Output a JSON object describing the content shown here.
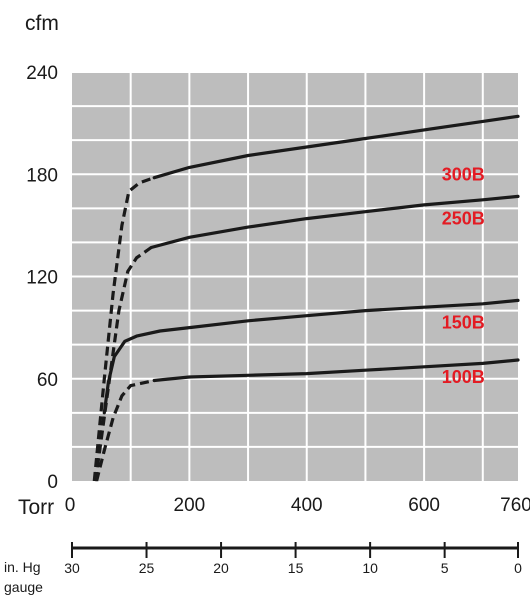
{
  "chart_data": {
    "type": "line",
    "y_unit_label": "cfm",
    "x_unit_label": "Torr",
    "secondary_axis": {
      "label_line1": "in. Hg",
      "label_line2": "gauge",
      "ticks": [
        {
          "label": "30",
          "torr": 0
        },
        {
          "label": "25",
          "torr": 127
        },
        {
          "label": "20",
          "torr": 254
        },
        {
          "label": "15",
          "torr": 381
        },
        {
          "label": "10",
          "torr": 508
        },
        {
          "label": "5",
          "torr": 635
        },
        {
          "label": "0",
          "torr": 760
        }
      ]
    },
    "xlim": [
      0,
      760
    ],
    "ylim": [
      0,
      240
    ],
    "x_ticks": [
      {
        "value": 0,
        "label": "0"
      },
      {
        "value": 200,
        "label": "200"
      },
      {
        "value": 400,
        "label": "400"
      },
      {
        "value": 600,
        "label": "600"
      },
      {
        "value": 760,
        "label": "760"
      }
    ],
    "y_ticks": [
      {
        "value": 0,
        "label": "0"
      },
      {
        "value": 60,
        "label": "60"
      },
      {
        "value": 120,
        "label": "120"
      },
      {
        "value": 180,
        "label": "180"
      },
      {
        "value": 240,
        "label": "240"
      }
    ],
    "grid_x": [
      0,
      100,
      200,
      300,
      400,
      500,
      600,
      700
    ],
    "grid_y": [
      0,
      20,
      40,
      60,
      80,
      100,
      120,
      140,
      160,
      180,
      200,
      220,
      240
    ],
    "grid": true,
    "colors": {
      "plot_background": "#bdbdbd",
      "grid": "#ffffff",
      "line": "#1a1a1a",
      "series_label": "#e31b23"
    },
    "series": [
      {
        "name": "300B",
        "label_at": {
          "x": 630,
          "y": 180
        },
        "dashed": [
          [
            38,
            0
          ],
          [
            55,
            60
          ],
          [
            70,
            110
          ],
          [
            85,
            150
          ],
          [
            97,
            170
          ],
          [
            115,
            175
          ],
          [
            140,
            178
          ]
        ],
        "solid": [
          [
            140,
            178
          ],
          [
            200,
            184
          ],
          [
            300,
            191
          ],
          [
            400,
            196
          ],
          [
            500,
            201
          ],
          [
            600,
            206
          ],
          [
            700,
            211
          ],
          [
            760,
            214
          ]
        ]
      },
      {
        "name": "250B",
        "label_at": {
          "x": 630,
          "y": 154
        },
        "dashed": [
          [
            40,
            0
          ],
          [
            60,
            50
          ],
          [
            80,
            100
          ],
          [
            95,
            123
          ],
          [
            110,
            131
          ],
          [
            135,
            137
          ]
        ],
        "solid": [
          [
            135,
            137
          ],
          [
            200,
            143
          ],
          [
            300,
            149
          ],
          [
            400,
            154
          ],
          [
            500,
            158
          ],
          [
            600,
            162
          ],
          [
            700,
            165
          ],
          [
            760,
            167
          ]
        ]
      },
      {
        "name": "150B",
        "label_at": {
          "x": 630,
          "y": 93
        },
        "dashed": [
          [
            39,
            0
          ],
          [
            47,
            20
          ],
          [
            55,
            40
          ]
        ],
        "solid": [
          [
            55,
            40
          ],
          [
            62,
            58
          ],
          [
            72,
            73
          ],
          [
            90,
            82
          ],
          [
            110,
            85
          ],
          [
            150,
            88
          ],
          [
            200,
            90
          ],
          [
            300,
            94
          ],
          [
            400,
            97
          ],
          [
            500,
            100
          ],
          [
            600,
            102
          ],
          [
            700,
            104
          ],
          [
            760,
            106
          ]
        ]
      },
      {
        "name": "100B",
        "label_at": {
          "x": 630,
          "y": 61
        },
        "dashed": [
          [
            42,
            0
          ],
          [
            55,
            18
          ],
          [
            70,
            37
          ],
          [
            85,
            50
          ],
          [
            100,
            56
          ],
          [
            140,
            59
          ]
        ],
        "solid": [
          [
            140,
            59
          ],
          [
            200,
            61
          ],
          [
            300,
            62
          ],
          [
            400,
            63
          ],
          [
            500,
            65
          ],
          [
            600,
            67
          ],
          [
            700,
            69
          ],
          [
            760,
            71
          ]
        ]
      }
    ]
  }
}
